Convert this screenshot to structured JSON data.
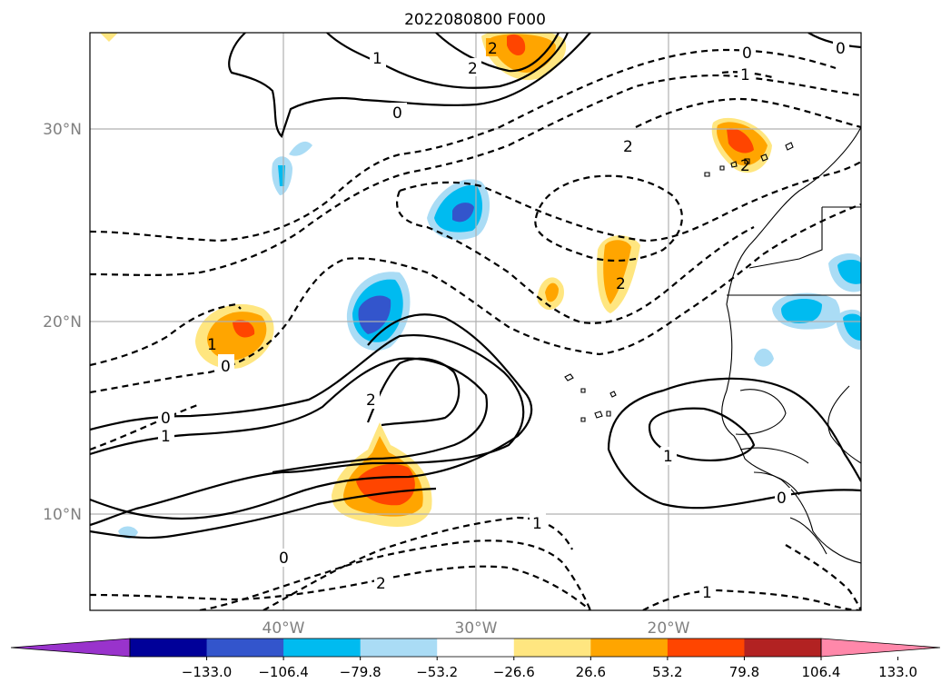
{
  "title": "2022080800 F000",
  "lat_labels": [
    "30°N",
    "20°N",
    "10°N"
  ],
  "lon_labels": [
    "40°W",
    "30°W",
    "20°W"
  ],
  "map": {
    "extent_lon": [
      -50,
      -10
    ],
    "extent_lat": [
      5,
      35
    ],
    "gridlines": true
  },
  "contour_labels": {
    "zero": "0",
    "one": "1",
    "two": "2"
  },
  "colorbar": {
    "ticks": [
      "−133.0",
      "−106.4",
      "−79.8",
      "−53.2",
      "−26.6",
      "26.6",
      "53.2",
      "79.8",
      "106.4",
      "133.0"
    ],
    "colors": [
      "#9933cc",
      "#000099",
      "#3355cc",
      "#00bbf0",
      "#aadcf5",
      "#ffffff",
      "#ffe680",
      "#ffa500",
      "#ff4500",
      "#b22222",
      "#ff88aa"
    ],
    "extend": "both"
  }
}
